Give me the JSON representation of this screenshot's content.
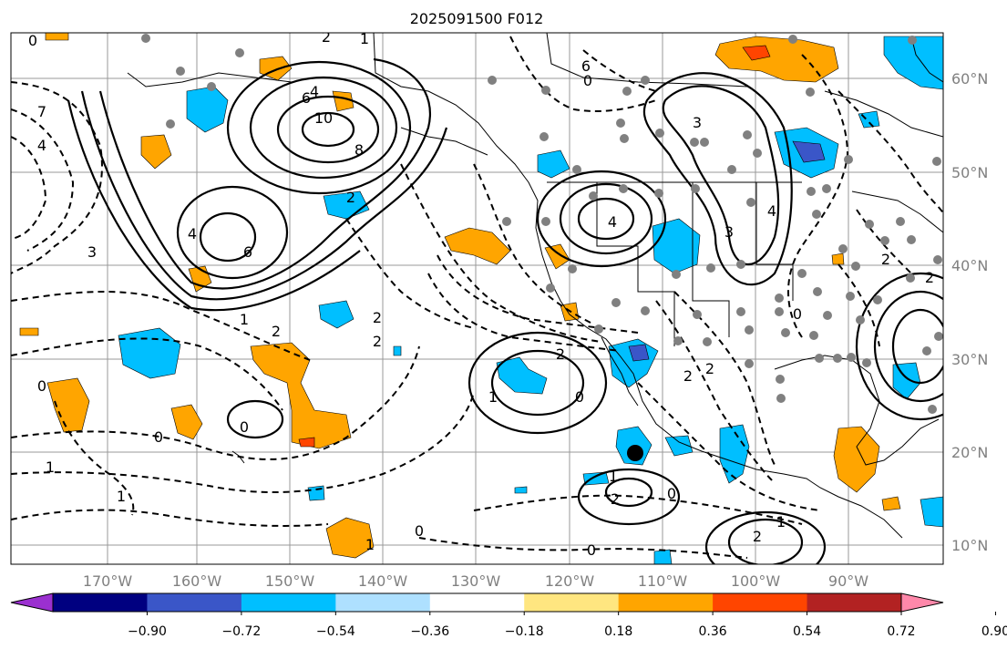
{
  "title": "2025091500 F012",
  "longitude_labels": [
    "170°W",
    "160°W",
    "150°W",
    "140°W",
    "130°W",
    "120°W",
    "110°W",
    "100°W",
    "90°W"
  ],
  "latitude_labels": [
    "60°N",
    "50°N",
    "40°N",
    "30°N",
    "20°N",
    "10°N"
  ],
  "colorbar": {
    "tick_labels": [
      "−0.90",
      "−0.72",
      "−0.54",
      "−0.36",
      "−0.18",
      "0.18",
      "0.36",
      "0.54",
      "0.72",
      "0.90"
    ],
    "colors": [
      "#9b30d0",
      "#000080",
      "#3a56c8",
      "#00bfff",
      "#aee0ff",
      "#ffffff",
      "#ffe680",
      "#ffa500",
      "#ff4500",
      "#b22222",
      "#ff88aa"
    ]
  },
  "colors": {
    "orange": "#ffa500",
    "yellow": "#ffe680",
    "red": "#ff4500",
    "cyan": "#00bfff",
    "blue": "#3a56c8",
    "gridline": "#808080",
    "station_marker": "#808080",
    "contour": "#000000"
  },
  "contour_labels": [
    "0",
    "2",
    "1",
    "4",
    "6",
    "10",
    "8",
    "6",
    "4",
    "3",
    "7",
    "4",
    "3",
    "6",
    "4",
    "2",
    "0",
    "1",
    "2",
    "4",
    "3",
    "2",
    "1",
    "0",
    "2",
    "2",
    "1",
    "0",
    "0",
    "2",
    "2",
    "1",
    "0",
    "1",
    "2",
    "2",
    "0",
    "0",
    "1",
    "2",
    "1",
    "0",
    "2",
    "0"
  ]
}
